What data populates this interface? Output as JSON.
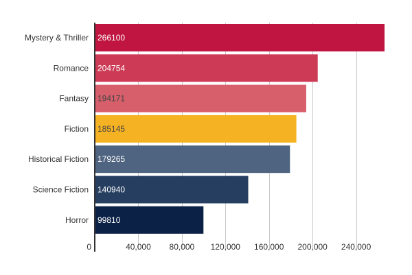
{
  "chart_data": {
    "type": "bar",
    "orientation": "horizontal",
    "title": "",
    "xlabel": "",
    "ylabel": "",
    "categories": [
      "Mystery & Thriller",
      "Romance",
      "Fantasy",
      "Fiction",
      "Historical Fiction",
      "Science Fiction",
      "Horror"
    ],
    "values": [
      266100,
      204754,
      194171,
      185145,
      179265,
      140940,
      99810
    ],
    "value_labels": [
      "266100",
      "204754",
      "194171",
      "185145",
      "179265",
      "140940",
      "99810"
    ],
    "colors": [
      "#bf1540",
      "#cd3a55",
      "#d75f6c",
      "#f5b223",
      "#4f6480",
      "#263e5f",
      "#0b2146"
    ],
    "value_label_colors": [
      "#ffffff",
      "#ffffff",
      "#444444",
      "#444444",
      "#ffffff",
      "#ffffff",
      "#ffffff"
    ],
    "xlim": [
      0,
      266100
    ],
    "xticks": [
      0,
      40000,
      80000,
      120000,
      160000,
      200000,
      240000
    ],
    "xtick_labels": [
      "0",
      "40,000",
      "80,000",
      "120,000",
      "160,000",
      "200,000",
      "240,000"
    ],
    "grid": true,
    "legend": "none"
  }
}
